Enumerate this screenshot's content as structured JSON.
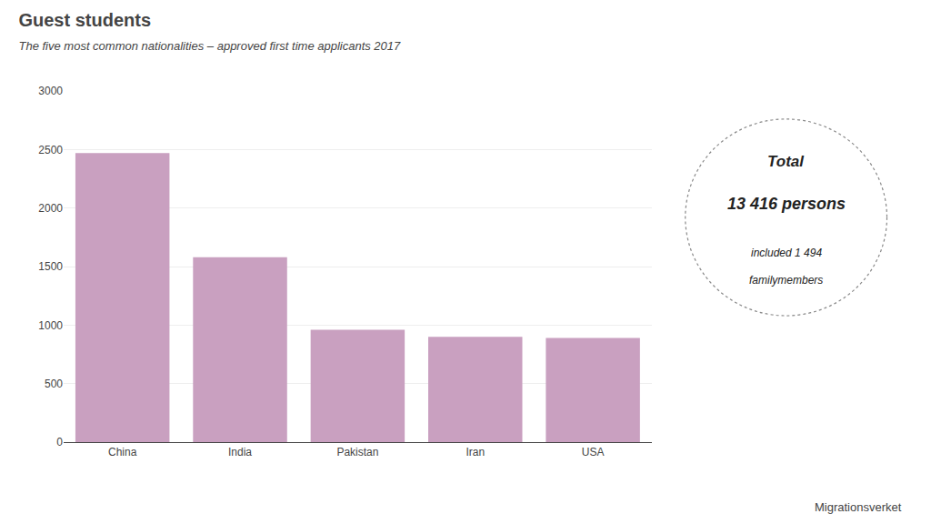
{
  "chart_data": {
    "type": "bar",
    "title": "Guest students",
    "subtitle": "The five most common nationalities – approved first time applicants 2017",
    "categories": [
      "China",
      "India",
      "Pakistan",
      "Iran",
      "USA"
    ],
    "values": [
      2470,
      1580,
      960,
      900,
      890
    ],
    "color": "#c9a0c0",
    "ylim": [
      0,
      3000
    ],
    "yticks": [
      0,
      500,
      1000,
      1500,
      2000,
      2500,
      3000
    ],
    "grid": true,
    "annotations": [
      "Total",
      "13 416 persons",
      "included 1 494",
      "familymembers",
      "Migrationsverket"
    ]
  }
}
